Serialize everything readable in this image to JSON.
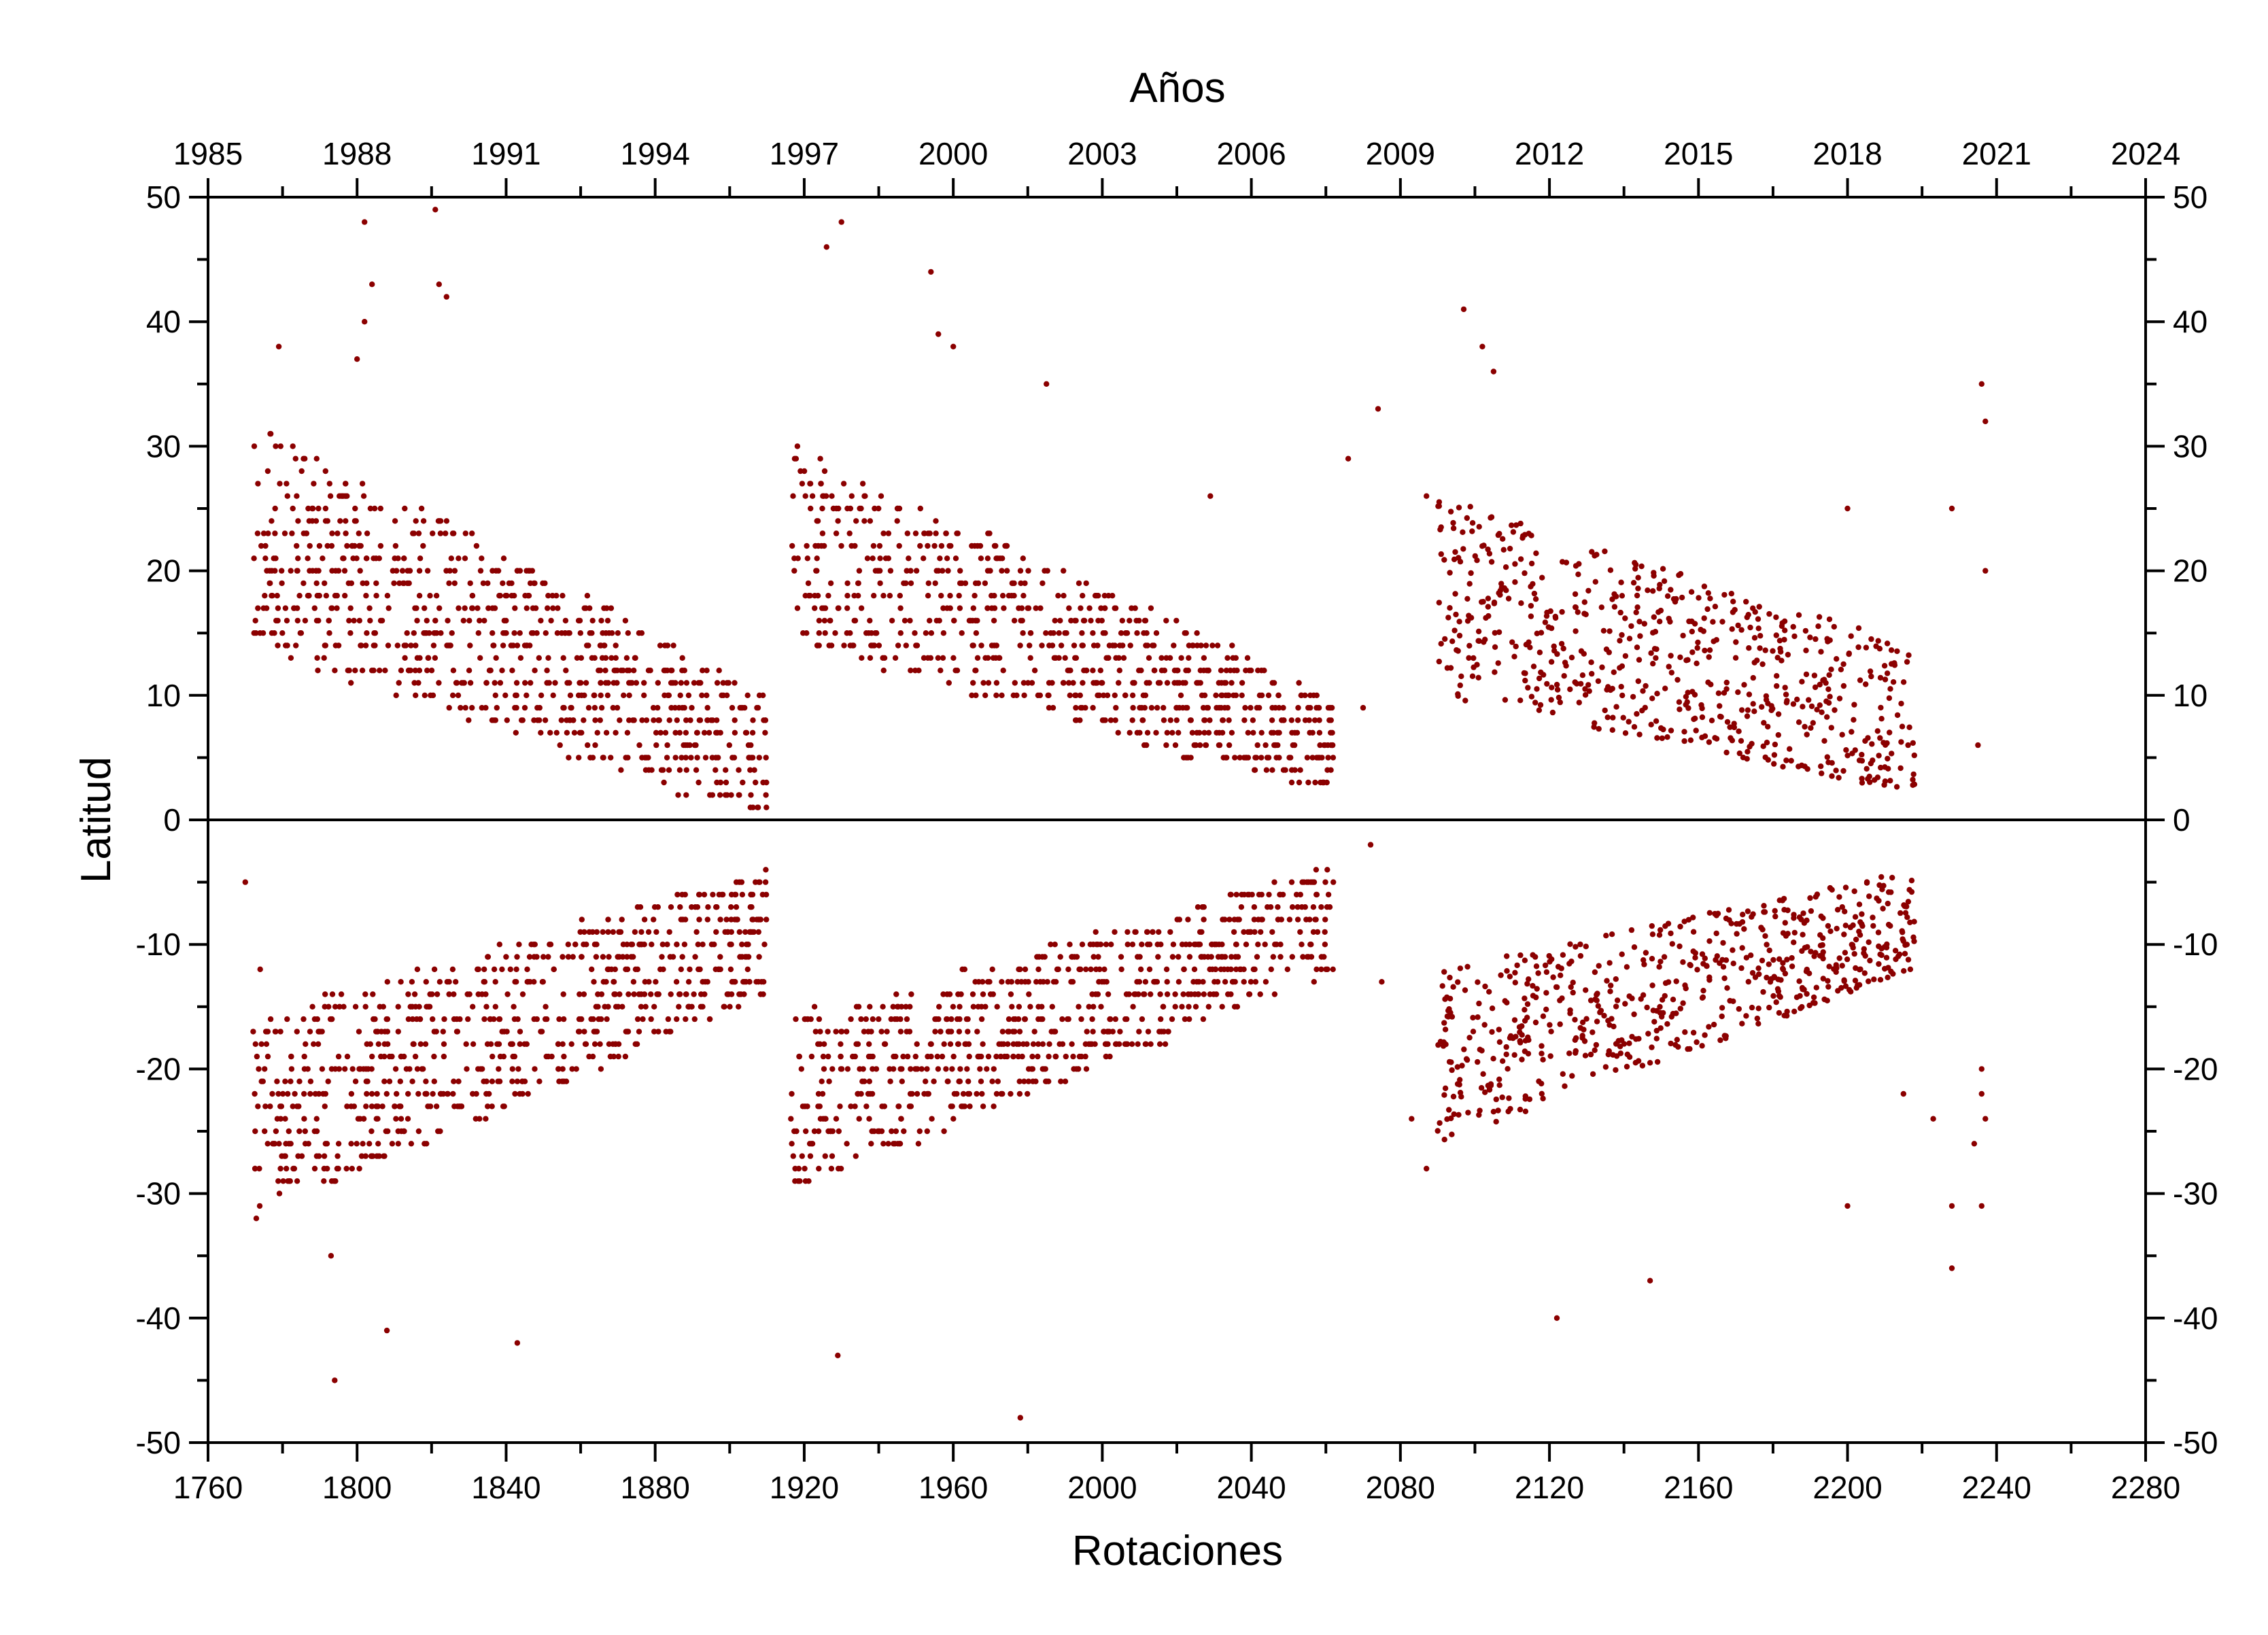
{
  "chart_data": {
    "type": "scatter",
    "title": "",
    "xlabel": "Rotaciones",
    "x2label": "Años",
    "ylabel": "Latitud",
    "xlim": [
      1760,
      2280
    ],
    "ylim": [
      -50,
      50
    ],
    "xticks": [
      "1760",
      "1800",
      "1840",
      "1880",
      "1920",
      "1960",
      "2000",
      "2040",
      "2080",
      "2120",
      "2160",
      "2200",
      "2240",
      "2280"
    ],
    "x2ticks": [
      "1985",
      "1988",
      "1991",
      "1994",
      "1997",
      "2000",
      "2003",
      "2006",
      "2009",
      "2012",
      "2015",
      "2018",
      "2021",
      "2024"
    ],
    "yticks": [
      "50",
      "40",
      "30",
      "20",
      "10",
      "0",
      "-10",
      "-20",
      "-30",
      "-40",
      "-50"
    ],
    "grid": false,
    "zero_line": true,
    "marker_color": "#8b0000",
    "clusters": [
      {
        "hemisphere": "north",
        "x_range": [
          1772,
          1910
        ],
        "lat_start": [
          14,
          32
        ],
        "lat_end": [
          0,
          10
        ],
        "count": 780
      },
      {
        "hemisphere": "north",
        "x_range": [
          1916,
          2062
        ],
        "lat_start": [
          14,
          30
        ],
        "lat_end": [
          2,
          10
        ],
        "count": 760
      },
      {
        "hemisphere": "north",
        "x_range": [
          2090,
          2218
        ],
        "lat_start": [
          10,
          26
        ],
        "lat_end": [
          2,
          14
        ],
        "count": 620
      },
      {
        "hemisphere": "south",
        "x_range": [
          1772,
          1910
        ],
        "lat_start": [
          -32,
          -16
        ],
        "lat_end": [
          -14,
          -4
        ],
        "count": 780
      },
      {
        "hemisphere": "south",
        "x_range": [
          1916,
          2062
        ],
        "lat_start": [
          -30,
          -16
        ],
        "lat_end": [
          -12,
          -4
        ],
        "count": 760
      },
      {
        "hemisphere": "south",
        "x_range": [
          2090,
          2218
        ],
        "lat_start": [
          -26,
          -12
        ],
        "lat_end": [
          -12,
          -4
        ],
        "count": 620
      }
    ],
    "outliers": [
      {
        "x": 1802,
        "y": 48
      },
      {
        "x": 1821,
        "y": 49
      },
      {
        "x": 1930,
        "y": 48
      },
      {
        "x": 1926,
        "y": 46
      },
      {
        "x": 1954,
        "y": 44
      },
      {
        "x": 1804,
        "y": 43
      },
      {
        "x": 1822,
        "y": 43
      },
      {
        "x": 1824,
        "y": 42
      },
      {
        "x": 2097,
        "y": 41
      },
      {
        "x": 1802,
        "y": 40
      },
      {
        "x": 1956,
        "y": 39
      },
      {
        "x": 1960,
        "y": 38
      },
      {
        "x": 1779,
        "y": 38
      },
      {
        "x": 1800,
        "y": 37
      },
      {
        "x": 2102,
        "y": 38
      },
      {
        "x": 2105,
        "y": 36
      },
      {
        "x": 1985,
        "y": 35
      },
      {
        "x": 2236,
        "y": 35
      },
      {
        "x": 2074,
        "y": 33
      },
      {
        "x": 2237,
        "y": 32
      },
      {
        "x": 2066,
        "y": 29
      },
      {
        "x": 2087,
        "y": 26
      },
      {
        "x": 2029,
        "y": 26
      },
      {
        "x": 2200,
        "y": 25
      },
      {
        "x": 2228,
        "y": 25
      },
      {
        "x": 2237,
        "y": 20
      },
      {
        "x": 2070,
        "y": 9
      },
      {
        "x": 2235,
        "y": 6
      },
      {
        "x": 1794,
        "y": -45
      },
      {
        "x": 1929,
        "y": -43
      },
      {
        "x": 1843,
        "y": -42
      },
      {
        "x": 1808,
        "y": -41
      },
      {
        "x": 1978,
        "y": -48
      },
      {
        "x": 2122,
        "y": -40
      },
      {
        "x": 2147,
        "y": -37
      },
      {
        "x": 2228,
        "y": -36
      },
      {
        "x": 2200,
        "y": -31
      },
      {
        "x": 2228,
        "y": -31
      },
      {
        "x": 2236,
        "y": -31
      },
      {
        "x": 1793,
        "y": -35
      },
      {
        "x": 2236,
        "y": -22
      },
      {
        "x": 2237,
        "y": -24
      },
      {
        "x": 2236,
        "y": -20
      },
      {
        "x": 2234,
        "y": -26
      },
      {
        "x": 2215,
        "y": -22
      },
      {
        "x": 2223,
        "y": -24
      },
      {
        "x": 2075,
        "y": -13
      },
      {
        "x": 2072,
        "y": -2
      },
      {
        "x": 2083,
        "y": -24
      },
      {
        "x": 2087,
        "y": -28
      },
      {
        "x": 1770,
        "y": -5
      },
      {
        "x": 1774,
        "y": -12
      }
    ]
  }
}
